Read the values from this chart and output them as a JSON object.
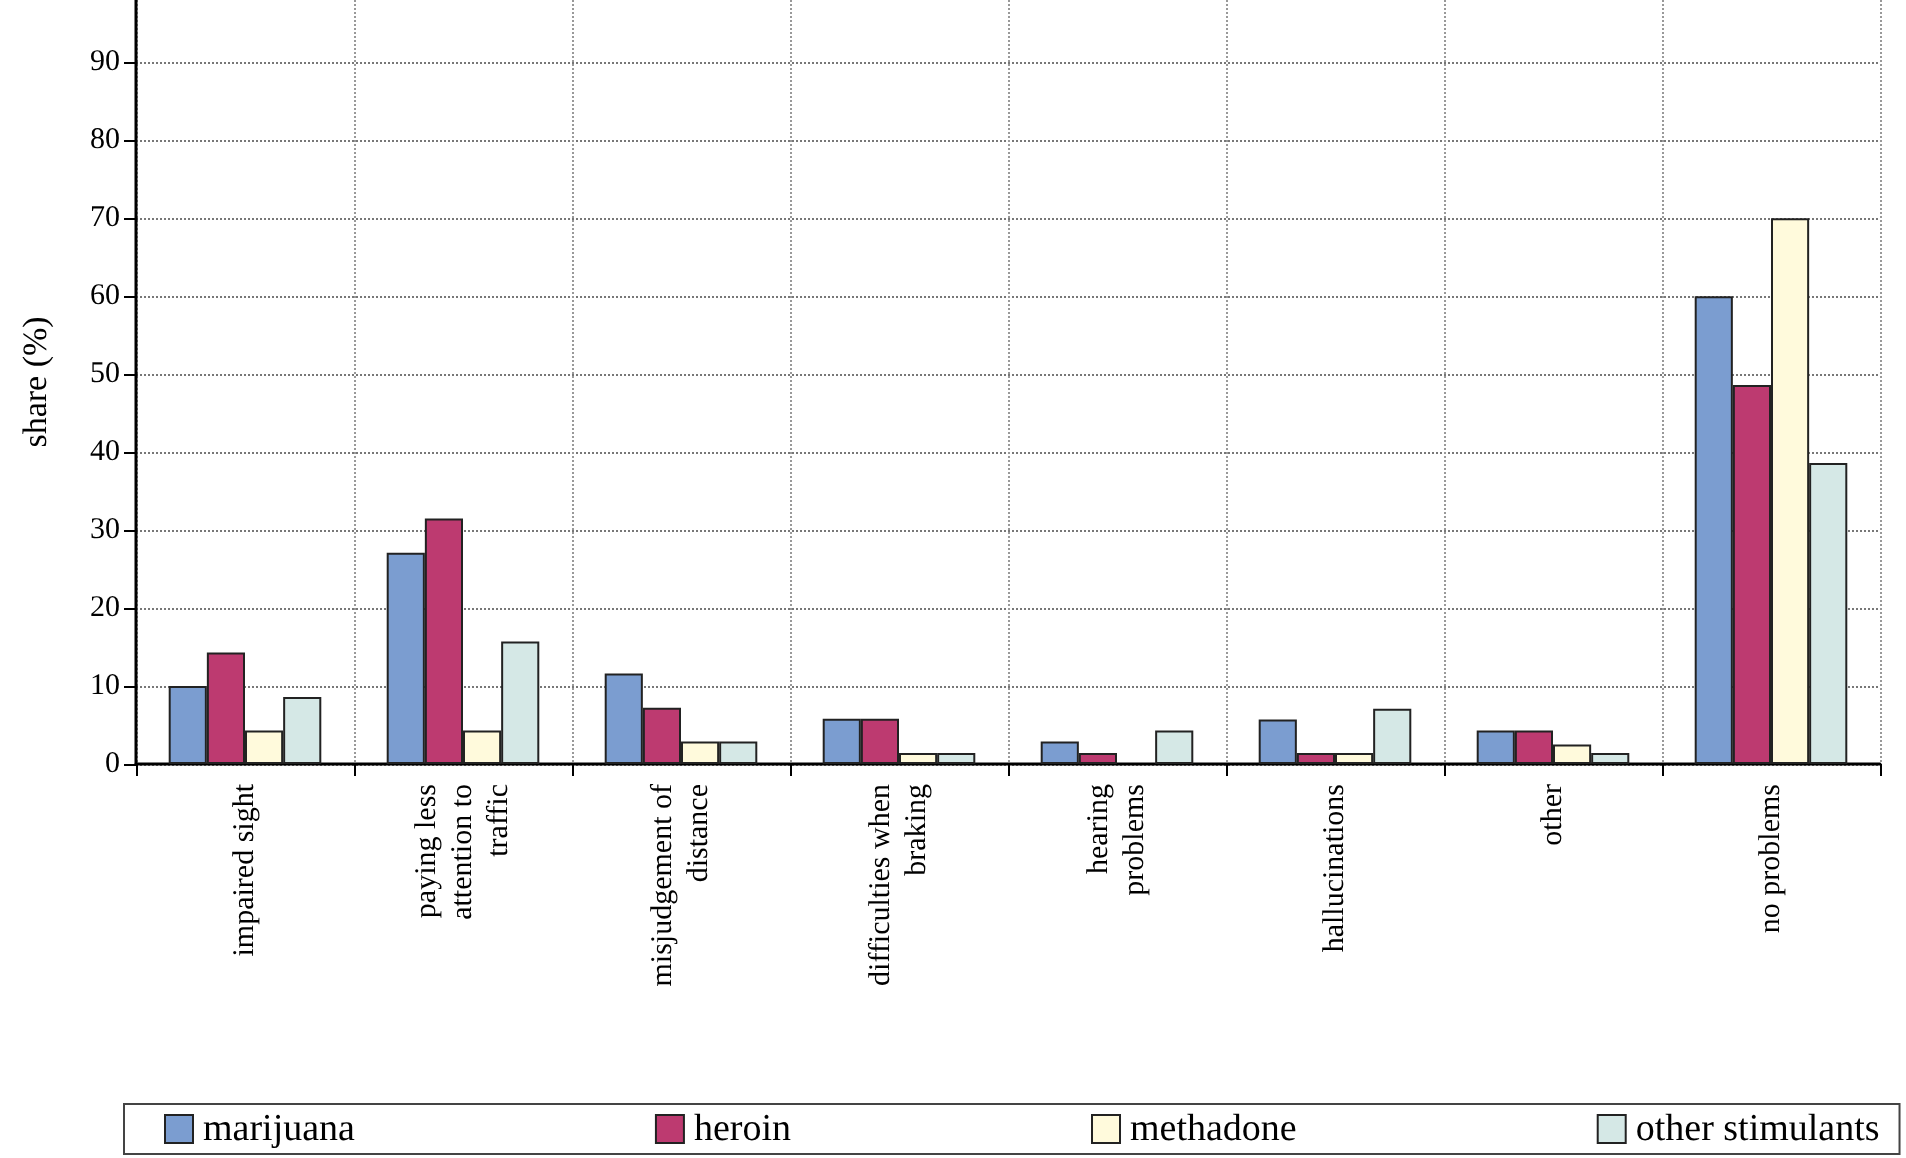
{
  "chart_data": {
    "type": "bar",
    "ylabel": "share (%)",
    "categories": [
      "impaired sight",
      "paying less\nattention to\ntraffic",
      "misjudgement of\ndistance",
      "difficulties when\nbraking",
      "hearing\nproblems",
      "hallucinations",
      "other",
      "no problems"
    ],
    "series": [
      {
        "name": "marijuana",
        "color": "#7b9dd0",
        "values": [
          10,
          27.1,
          11.6,
          5.8,
          2.9,
          5.7,
          4.3,
          60
        ]
      },
      {
        "name": "heroin",
        "color": "#bd3a70",
        "values": [
          14.3,
          31.5,
          7.2,
          5.8,
          1.4,
          1.4,
          4.3,
          48.6
        ]
      },
      {
        "name": "methadone",
        "color": "#fffadc",
        "values": [
          4.3,
          4.3,
          2.9,
          1.4,
          null,
          1.4,
          2.5,
          70
        ]
      },
      {
        "name": "other stimulants",
        "color": "#d5e8e6",
        "values": [
          8.6,
          15.7,
          2.9,
          1.4,
          4.3,
          7.1,
          1.4,
          38.6
        ]
      }
    ],
    "ylim": [
      0,
      98
    ],
    "yticks": [
      0,
      10,
      20,
      30,
      40,
      50,
      60,
      70,
      80,
      90
    ],
    "grid": true,
    "legend": "bottom"
  }
}
